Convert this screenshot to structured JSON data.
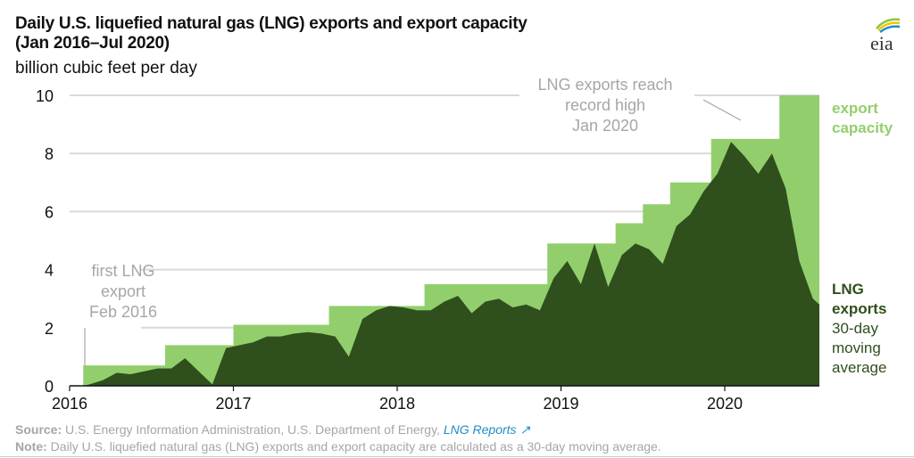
{
  "title_line1": "Daily U.S. liquefied natural gas (LNG) exports and export capacity",
  "title_line2": "(Jan 2016–Jul 2020)",
  "logo_text": "eia",
  "footer": {
    "source_label": "Source:",
    "source_text": " U.S. Energy Information Administration, U.S. Department of Energy, ",
    "source_link": "LNG Reports",
    "note_label": "Note:",
    "note_text": " Daily U.S. liquefied natural gas (LNG) exports and export capacity are calculated as a 30-day moving average."
  },
  "colors": {
    "capacity": "#92cf6c",
    "exports": "#2f4f1d",
    "grid": "#d9d9d9",
    "annotation": "#a6a6a6",
    "link": "#1f8dc7"
  },
  "chart_data": {
    "type": "area",
    "ylabel": "billion cubic feet per day",
    "ylim": [
      0,
      10
    ],
    "yticks": [
      "0",
      "2",
      "4",
      "6",
      "8",
      "10"
    ],
    "xticks": [
      "2016",
      "2017",
      "2018",
      "2019",
      "2020"
    ],
    "grid": true,
    "legend": "right",
    "series": [
      {
        "name": "export capacity",
        "kind": "step",
        "points": [
          [
            "2016-02",
            0.7
          ],
          [
            "2016-08",
            1.4
          ],
          [
            "2017-01",
            2.1
          ],
          [
            "2017-08",
            2.75
          ],
          [
            "2018-03",
            3.5
          ],
          [
            "2018-12",
            4.9
          ],
          [
            "2019-05",
            5.6
          ],
          [
            "2019-07",
            6.25
          ],
          [
            "2019-09",
            7.0
          ],
          [
            "2019-12",
            8.5
          ],
          [
            "2020-05",
            10.0
          ],
          [
            "2020-07",
            10.0
          ]
        ]
      },
      {
        "name": "LNG exports",
        "subname": "30-day moving average",
        "kind": "area",
        "points": [
          [
            "2016-02",
            0.05
          ],
          [
            "2016-03",
            0.2
          ],
          [
            "2016-04",
            0.45
          ],
          [
            "2016-05",
            0.4
          ],
          [
            "2016-06",
            0.5
          ],
          [
            "2016-07",
            0.6
          ],
          [
            "2016-08",
            0.6
          ],
          [
            "2016-09",
            0.95
          ],
          [
            "2016-10",
            0.5
          ],
          [
            "2016-11",
            0.05
          ],
          [
            "2016-12",
            1.3
          ],
          [
            "2017-01",
            1.4
          ],
          [
            "2017-02",
            1.5
          ],
          [
            "2017-03",
            1.7
          ],
          [
            "2017-04",
            1.7
          ],
          [
            "2017-05",
            1.8
          ],
          [
            "2017-06",
            1.85
          ],
          [
            "2017-07",
            1.8
          ],
          [
            "2017-08",
            1.7
          ],
          [
            "2017-09",
            1.0
          ],
          [
            "2017-10",
            2.3
          ],
          [
            "2017-11",
            2.6
          ],
          [
            "2017-12",
            2.75
          ],
          [
            "2018-01",
            2.7
          ],
          [
            "2018-02",
            2.6
          ],
          [
            "2018-03",
            2.6
          ],
          [
            "2018-04",
            2.9
          ],
          [
            "2018-05",
            3.1
          ],
          [
            "2018-06",
            2.5
          ],
          [
            "2018-07",
            2.9
          ],
          [
            "2018-08",
            3.0
          ],
          [
            "2018-09",
            2.7
          ],
          [
            "2018-10",
            2.8
          ],
          [
            "2018-11",
            2.6
          ],
          [
            "2018-12",
            3.7
          ],
          [
            "2019-01",
            4.3
          ],
          [
            "2019-02",
            3.5
          ],
          [
            "2019-03",
            4.9
          ],
          [
            "2019-04",
            3.4
          ],
          [
            "2019-05",
            4.5
          ],
          [
            "2019-06",
            4.9
          ],
          [
            "2019-07",
            4.7
          ],
          [
            "2019-08",
            4.2
          ],
          [
            "2019-09",
            5.5
          ],
          [
            "2019-10",
            5.9
          ],
          [
            "2019-11",
            6.7
          ],
          [
            "2019-12",
            7.3
          ],
          [
            "2020-01",
            8.4
          ],
          [
            "2020-02",
            7.9
          ],
          [
            "2020-03",
            7.3
          ],
          [
            "2020-04",
            8.0
          ],
          [
            "2020-05",
            6.8
          ],
          [
            "2020-06",
            4.3
          ],
          [
            "2020-07",
            3.0
          ]
        ]
      }
    ],
    "annotations": [
      {
        "lines": [
          "first LNG",
          "export",
          "Feb 2016"
        ]
      },
      {
        "lines": [
          "LNG exports reach",
          "record high",
          "Jan 2020"
        ]
      }
    ],
    "labels": {
      "capacity": [
        "export",
        "capacity"
      ],
      "exports": [
        "LNG",
        "exports"
      ],
      "exports_sub": [
        "30-day",
        "moving",
        "average"
      ]
    }
  }
}
